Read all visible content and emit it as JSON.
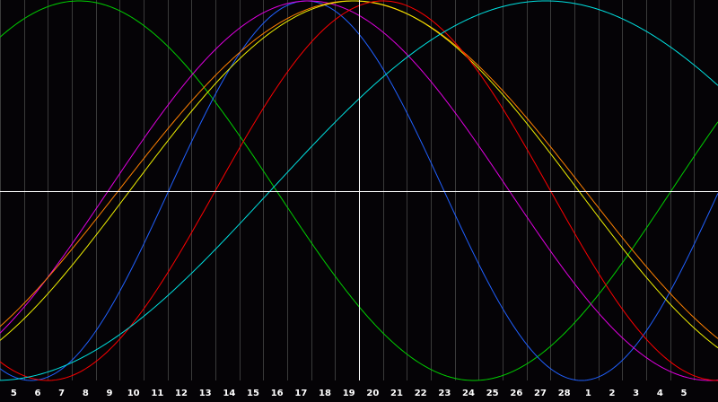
{
  "chart_data": {
    "type": "line",
    "title": "",
    "xlabel": "",
    "ylabel": "",
    "grid": true,
    "legend": "none",
    "x_ticks": [
      "5",
      "6",
      "7",
      "8",
      "9",
      "10",
      "11",
      "12",
      "13",
      "14",
      "15",
      "16",
      "17",
      "18",
      "19",
      "20",
      "21",
      "22",
      "23",
      "24",
      "25",
      "26",
      "27",
      "28",
      "1",
      "2",
      "3",
      "4",
      "5"
    ],
    "x_domain": [
      0,
      30
    ],
    "y_domain": [
      -1,
      1
    ],
    "crosshair_x_index": 14,
    "crosshair_y": 0,
    "colors": {
      "background": "#050306",
      "grid": "#3a3a3a",
      "axis": "#ffffff",
      "label": "#ffffff"
    },
    "series": [
      {
        "color": "#00d000",
        "peak_x": 3.3,
        "period": 33.0
      },
      {
        "color": "#2060ff",
        "peak_x": 12.8,
        "period": 23.0
      },
      {
        "color": "#e000e0",
        "peak_x": 12.9,
        "period": 33.5
      },
      {
        "color": "#ff8000",
        "peak_x": 14.7,
        "period": 39.0
      },
      {
        "color": "#f0f000",
        "peak_x": 14.8,
        "period": 37.5
      },
      {
        "color": "#ff0000",
        "peak_x": 16.0,
        "period": 28.0
      },
      {
        "color": "#00e0e0",
        "peak_x": 22.8,
        "period": 46.0
      }
    ]
  }
}
